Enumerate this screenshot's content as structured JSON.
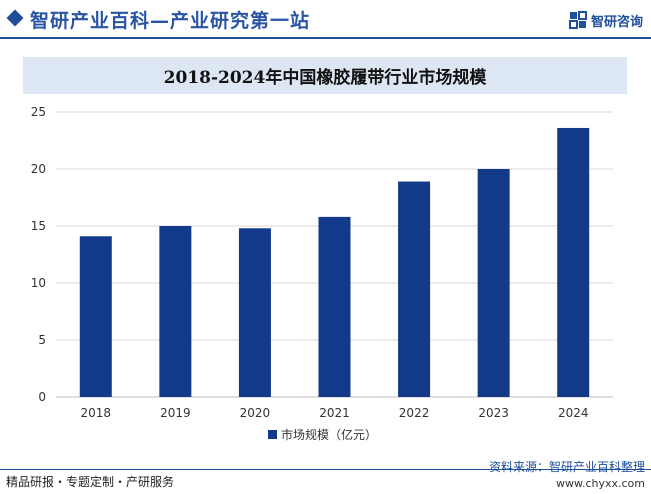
{
  "header": {
    "title": "智研产业百科—产业研究第一站",
    "logo_text": "智研咨询"
  },
  "colors": {
    "accent": "#1f4e9a",
    "bar": "#13398a",
    "title_band": "#dde7f3"
  },
  "chart_data": {
    "type": "bar",
    "title": "2018-2024年中国橡胶履带行业市场规模",
    "categories": [
      "2018",
      "2019",
      "2020",
      "2021",
      "2022",
      "2023",
      "2024"
    ],
    "series": [
      {
        "name": "市场规模（亿元）",
        "values": [
          14.1,
          15.0,
          14.8,
          15.8,
          18.9,
          20.0,
          23.6
        ]
      }
    ],
    "yticks": [
      0,
      5,
      10,
      15,
      20,
      25
    ],
    "ylim": [
      0,
      25
    ],
    "xlabel": "",
    "ylabel": "",
    "grid": true,
    "legend": "bottom-center"
  },
  "footer": {
    "left": "精品研报・专题定制・产研服务",
    "source": "资料来源：智研产业百科整理",
    "url": "www.chyxx.com"
  }
}
